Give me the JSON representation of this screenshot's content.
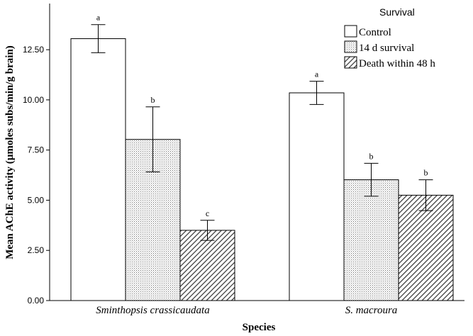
{
  "chart_data": {
    "type": "bar",
    "xlabel": "Species",
    "ylabel": "Mean AChE activity (µmoles subs/min/g brain)",
    "ylim": [
      0,
      14.8
    ],
    "yticks": [
      "0.00",
      "2.50",
      "5.00",
      "7.50",
      "10.00",
      "12.50"
    ],
    "categories": [
      "Sminthopsis crassicaudata",
      "S. macroura"
    ],
    "legend": {
      "title": "Survival",
      "position": "top-right"
    },
    "grid": false,
    "series": [
      {
        "name": "Control",
        "pattern": "none",
        "values": [
          13.05,
          10.35
        ],
        "errors": [
          0.7,
          0.58
        ],
        "labels": [
          "a",
          "a"
        ]
      },
      {
        "name": "14 d survival",
        "pattern": "dots",
        "values": [
          8.03,
          6.02
        ],
        "errors": [
          1.62,
          0.82
        ],
        "labels": [
          "b",
          "b"
        ]
      },
      {
        "name": "Death within 48 h",
        "pattern": "hatch",
        "values": [
          3.5,
          5.25
        ],
        "errors": [
          0.5,
          0.77
        ],
        "labels": [
          "c",
          "b"
        ]
      }
    ]
  }
}
